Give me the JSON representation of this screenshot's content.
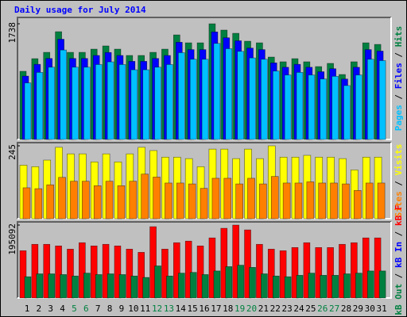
{
  "chart_data": [
    {
      "type": "bar",
      "title": "Daily usage for July 2014",
      "title_color": "#0000ff",
      "ylim": [
        0,
        1738
      ],
      "yticks": [
        1738
      ],
      "legend_separator": "/",
      "series": [
        {
          "name": "Hits",
          "color": "#008040",
          "values": [
            1024,
            1214,
            1309,
            1619,
            1309,
            1309,
            1357,
            1405,
            1357,
            1262,
            1262,
            1309,
            1357,
            1571,
            1452,
            1452,
            1738,
            1643,
            1595,
            1476,
            1452,
            1238,
            1167,
            1214,
            1167,
            1095,
            1143,
            976,
            1167,
            1452,
            1428
          ]
        },
        {
          "name": "Files",
          "color": "#0000ff",
          "values": [
            952,
            1129,
            1217,
            1506,
            1217,
            1217,
            1262,
            1307,
            1262,
            1174,
            1174,
            1217,
            1262,
            1461,
            1350,
            1350,
            1616,
            1528,
            1483,
            1373,
            1350,
            1151,
            1085,
            1129,
            1085,
            1018,
            1063,
            908,
            1085,
            1350,
            1328
          ]
        },
        {
          "name": "Pages",
          "color": "#00c0ff",
          "values": [
            850,
            1008,
            1086,
            1344,
            1086,
            1086,
            1126,
            1166,
            1126,
            1047,
            1047,
            1086,
            1126,
            1304,
            1205,
            1205,
            1443,
            1364,
            1324,
            1225,
            1205,
            1028,
            969,
            1008,
            969,
            909,
            949,
            810,
            969,
            1205,
            1185
          ]
        }
      ]
    },
    {
      "type": "bar",
      "ylim": [
        0,
        245
      ],
      "yticks": [
        245
      ],
      "legend_separator": "/",
      "series": [
        {
          "name": "Visits",
          "color": "#ffff00",
          "values": [
            180,
            175,
            197,
            240,
            218,
            218,
            191,
            218,
            191,
            218,
            240,
            229,
            207,
            207,
            202,
            175,
            234,
            234,
            202,
            234,
            202,
            245,
            207,
            207,
            213,
            207,
            207,
            202,
            164,
            207,
            207
          ]
        },
        {
          "name": "Sites",
          "color": "#ff8000",
          "values": [
            104,
            101,
            114,
            139,
            126,
            126,
            111,
            126,
            111,
            126,
            150,
            140,
            120,
            120,
            117,
            102,
            136,
            136,
            117,
            136,
            117,
            142,
            120,
            120,
            124,
            120,
            120,
            117,
            95,
            120,
            120
          ]
        }
      ]
    },
    {
      "type": "bar",
      "ylim": [
        0,
        195092
      ],
      "yticks": [
        195092
      ],
      "legend_separator": "/",
      "categories": [
        "1",
        "2",
        "3",
        "4",
        "5",
        "6",
        "7",
        "8",
        "9",
        "10",
        "11",
        "12",
        "13",
        "14",
        "15",
        "16",
        "17",
        "18",
        "19",
        "20",
        "21",
        "22",
        "23",
        "24",
        "25",
        "26",
        "27",
        "28",
        "29",
        "30",
        "31"
      ],
      "category_colors": [
        "#000000",
        "#000000",
        "#000000",
        "#000000",
        "#008040",
        "#008040",
        "#000000",
        "#000000",
        "#000000",
        "#000000",
        "#000000",
        "#008040",
        "#008040",
        "#000000",
        "#000000",
        "#000000",
        "#000000",
        "#000000",
        "#008040",
        "#008040",
        "#000000",
        "#000000",
        "#000000",
        "#000000",
        "#000000",
        "#008040",
        "#008040",
        "#000000",
        "#000000",
        "#000000",
        "#000000"
      ],
      "series": [
        {
          "name": "kB F",
          "color": "#ff0000",
          "values": [
            126496,
            143648,
            143648,
            139360,
            130784,
            147936,
            139360,
            143648,
            139360,
            130784,
            122208,
            190816,
            130784,
            147936,
            152224,
            139360,
            160800,
            186528,
            195092,
            182240,
            143648,
            130784,
            126496,
            135072,
            147936,
            135072,
            135072,
            143648,
            147936,
            160800,
            160800
          ]
        },
        {
          "name": "kB In",
          "color": "#0000ff",
          "values": [
            0,
            0,
            0,
            0,
            0,
            0,
            0,
            0,
            0,
            0,
            0,
            0,
            0,
            0,
            0,
            0,
            0,
            0,
            0,
            0,
            0,
            0,
            0,
            0,
            0,
            0,
            0,
            0,
            0,
            0,
            0
          ]
        },
        {
          "name": "kB Out",
          "color": "#008040",
          "values": [
            56923,
            64642,
            64642,
            62712,
            58853,
            66571,
            62712,
            64642,
            62712,
            58853,
            54994,
            85867,
            58853,
            66571,
            68501,
            62712,
            72360,
            83938,
            87791,
            82008,
            64642,
            58853,
            56923,
            60782,
            66571,
            60782,
            60782,
            64642,
            66571,
            72360,
            72360
          ]
        }
      ]
    }
  ]
}
